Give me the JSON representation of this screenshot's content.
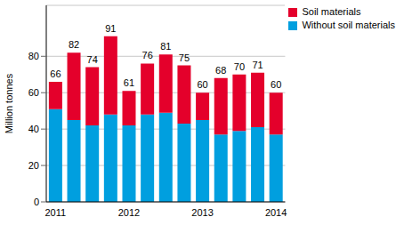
{
  "chart_data": {
    "type": "bar",
    "stacked": true,
    "y_label": "Million tonnes",
    "categories": [
      "2011",
      null,
      null,
      null,
      "2012",
      null,
      null,
      null,
      "2013",
      null,
      null,
      null,
      "2014"
    ],
    "series": [
      {
        "name": "Without soil materials",
        "color": "#009fdf",
        "values": [
          51,
          45,
          42,
          48,
          42,
          48,
          49,
          43,
          45,
          37,
          39,
          41,
          37
        ]
      },
      {
        "name": "Soil materials",
        "color": "#e4002b",
        "values": [
          15,
          37,
          32,
          43,
          19,
          28,
          32,
          32,
          15,
          31,
          31,
          30,
          23
        ]
      }
    ],
    "totals": [
      66,
      82,
      74,
      91,
      61,
      76,
      81,
      75,
      60,
      68,
      70,
      71,
      60
    ],
    "ylim": [
      0,
      108
    ],
    "yticks": [
      0,
      20,
      40,
      60,
      80
    ],
    "grid": true,
    "legend": "upper right"
  }
}
